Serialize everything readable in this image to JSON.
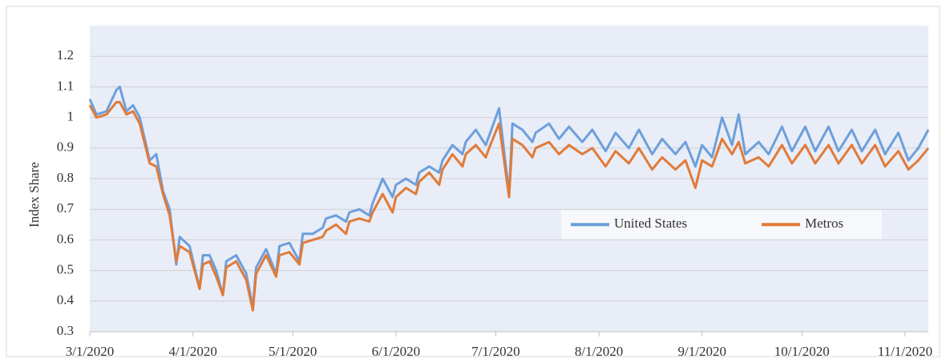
{
  "chart_data": {
    "type": "line",
    "y_label": "Index Share",
    "x": [
      "3/1/2020",
      "3/3/2020",
      "3/6/2020",
      "3/9/2020",
      "3/10/2020",
      "3/12/2020",
      "3/14/2020",
      "3/16/2020",
      "3/19/2020",
      "3/21/2020",
      "3/23/2020",
      "3/25/2020",
      "3/27/2020",
      "3/28/2020",
      "3/31/2020",
      "4/3/2020",
      "4/4/2020",
      "4/6/2020",
      "4/8/2020",
      "4/10/2020",
      "4/11/2020",
      "4/14/2020",
      "4/17/2020",
      "4/19/2020",
      "4/20/2020",
      "4/23/2020",
      "4/26/2020",
      "4/27/2020",
      "4/30/2020",
      "5/3/2020",
      "5/4/2020",
      "5/7/2020",
      "5/10/2020",
      "5/11/2020",
      "5/14/2020",
      "5/17/2020",
      "5/18/2020",
      "5/21/2020",
      "5/24/2020",
      "5/25/2020",
      "5/28/2020",
      "5/31/2020",
      "6/1/2020",
      "6/4/2020",
      "6/7/2020",
      "6/8/2020",
      "6/11/2020",
      "6/14/2020",
      "6/15/2020",
      "6/18/2020",
      "6/21/2020",
      "6/22/2020",
      "6/25/2020",
      "6/28/2020",
      "6/29/2020",
      "7/2/2020",
      "7/5/2020",
      "7/6/2020",
      "7/9/2020",
      "7/12/2020",
      "7/13/2020",
      "7/17/2020",
      "7/20/2020",
      "7/23/2020",
      "7/27/2020",
      "7/30/2020",
      "8/3/2020",
      "8/6/2020",
      "8/10/2020",
      "8/13/2020",
      "8/17/2020",
      "8/20/2020",
      "8/24/2020",
      "8/27/2020",
      "8/30/2020",
      "9/1/2020",
      "9/4/2020",
      "9/7/2020",
      "9/10/2020",
      "9/12/2020",
      "9/14/2020",
      "9/18/2020",
      "9/21/2020",
      "9/25/2020",
      "9/28/2020",
      "10/2/2020",
      "10/5/2020",
      "10/9/2020",
      "10/12/2020",
      "10/16/2020",
      "10/19/2020",
      "10/23/2020",
      "10/26/2020",
      "10/30/2020",
      "11/2/2020",
      "11/5/2020",
      "11/8/2020"
    ],
    "series": [
      {
        "name": "United States",
        "color": "#6d9fdb",
        "values": [
          1.06,
          1.01,
          1.02,
          1.09,
          1.1,
          1.02,
          1.04,
          1.0,
          0.86,
          0.88,
          0.76,
          0.7,
          0.52,
          0.61,
          0.58,
          0.44,
          0.55,
          0.55,
          0.5,
          0.42,
          0.53,
          0.55,
          0.49,
          0.38,
          0.51,
          0.57,
          0.49,
          0.58,
          0.59,
          0.53,
          0.62,
          0.62,
          0.64,
          0.67,
          0.68,
          0.66,
          0.69,
          0.7,
          0.68,
          0.72,
          0.8,
          0.74,
          0.78,
          0.8,
          0.78,
          0.82,
          0.84,
          0.82,
          0.86,
          0.91,
          0.88,
          0.92,
          0.96,
          0.91,
          0.94,
          1.03,
          0.75,
          0.98,
          0.96,
          0.92,
          0.95,
          0.98,
          0.93,
          0.97,
          0.92,
          0.96,
          0.89,
          0.95,
          0.9,
          0.96,
          0.88,
          0.93,
          0.88,
          0.92,
          0.84,
          0.91,
          0.87,
          1.0,
          0.91,
          1.01,
          0.88,
          0.92,
          0.88,
          0.97,
          0.89,
          0.97,
          0.89,
          0.97,
          0.89,
          0.96,
          0.89,
          0.96,
          0.88,
          0.95,
          0.86,
          0.9,
          0.96
        ]
      },
      {
        "name": "Metros",
        "color": "#e07b39",
        "values": [
          1.04,
          1.0,
          1.01,
          1.05,
          1.05,
          1.01,
          1.02,
          0.98,
          0.85,
          0.84,
          0.75,
          0.68,
          0.53,
          0.58,
          0.56,
          0.44,
          0.52,
          0.53,
          0.48,
          0.42,
          0.51,
          0.53,
          0.47,
          0.37,
          0.49,
          0.55,
          0.48,
          0.55,
          0.56,
          0.52,
          0.59,
          0.6,
          0.61,
          0.63,
          0.65,
          0.62,
          0.66,
          0.67,
          0.66,
          0.69,
          0.75,
          0.69,
          0.74,
          0.77,
          0.75,
          0.79,
          0.82,
          0.78,
          0.83,
          0.88,
          0.84,
          0.88,
          0.91,
          0.87,
          0.9,
          0.98,
          0.74,
          0.93,
          0.91,
          0.87,
          0.9,
          0.92,
          0.88,
          0.91,
          0.88,
          0.9,
          0.84,
          0.89,
          0.85,
          0.9,
          0.83,
          0.87,
          0.83,
          0.86,
          0.77,
          0.86,
          0.84,
          0.93,
          0.88,
          0.92,
          0.85,
          0.87,
          0.84,
          0.91,
          0.85,
          0.91,
          0.85,
          0.91,
          0.85,
          0.91,
          0.85,
          0.91,
          0.84,
          0.89,
          0.83,
          0.86,
          0.9
        ]
      }
    ],
    "xlim": [
      "3/1/2020",
      "11/8/2020"
    ],
    "xticks": [
      "3/1/2020",
      "4/1/2020",
      "5/1/2020",
      "6/1/2020",
      "7/1/2020",
      "8/1/2020",
      "9/1/2020",
      "10/1/2020",
      "11/1/2020"
    ],
    "ylim": [
      0.3,
      1.3
    ],
    "yticks": [
      0.3,
      0.4,
      0.5,
      0.6,
      0.7,
      0.8,
      0.9,
      1,
      1.1,
      1.2
    ],
    "grid": true,
    "legend": "right"
  }
}
